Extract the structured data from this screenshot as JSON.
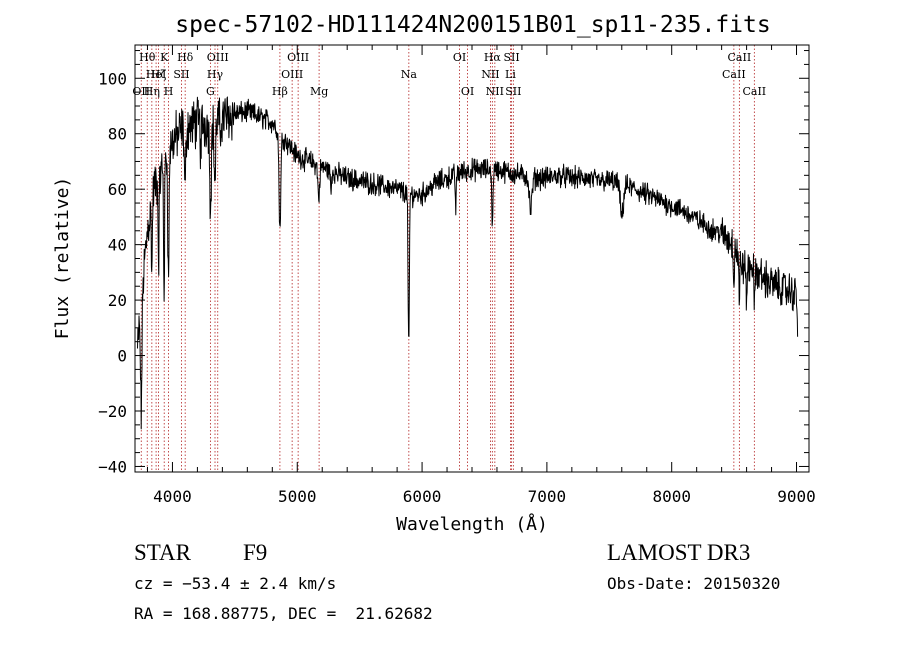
{
  "chart_data": {
    "type": "line",
    "title": "spec-57102-HD111424N200151B01_sp11-235.fits",
    "xlabel": "Wavelength (Å)",
    "ylabel": "Flux (relative)",
    "xlim": [
      3700,
      9100
    ],
    "ylim": [
      -42,
      112
    ],
    "xticks": [
      4000,
      5000,
      6000,
      7000,
      8000,
      9000
    ],
    "xtick_labels": [
      "4000",
      "5000",
      "6000",
      "7000",
      "8000",
      "9000"
    ],
    "yticks": [
      -40,
      -20,
      0,
      20,
      40,
      60,
      80,
      100
    ],
    "ytick_labels": [
      "−40",
      "−20",
      "0",
      "20",
      "40",
      "60",
      "80",
      "100"
    ],
    "line_color": "#000000",
    "marker_color": "#b22222",
    "continuum": {
      "x": [
        3720,
        3760,
        3800,
        3850,
        3900,
        3950,
        4000,
        4050,
        4100,
        4150,
        4200,
        4250,
        4300,
        4350,
        4400,
        4500,
        4600,
        4700,
        4800,
        4900,
        5000,
        5100,
        5200,
        5300,
        5400,
        5500,
        5600,
        5700,
        5800,
        5900,
        6000,
        6100,
        6200,
        6300,
        6400,
        6500,
        6600,
        6700,
        6800,
        6900,
        7000,
        7100,
        7200,
        7300,
        7400,
        7500,
        7600,
        7700,
        7800,
        7900,
        8000,
        8100,
        8200,
        8300,
        8400,
        8500,
        8550,
        8600,
        8650,
        8700,
        8800,
        8900,
        9000,
        9010
      ],
      "y": [
        2,
        25,
        45,
        60,
        65,
        72,
        77,
        80,
        82,
        83,
        84,
        84,
        83,
        85,
        86,
        87,
        88,
        86,
        84,
        78,
        72,
        70,
        68,
        66,
        64,
        63,
        62,
        61,
        60,
        58,
        58,
        62,
        64,
        66,
        67,
        67,
        67,
        66,
        65,
        64,
        64,
        65,
        64,
        64,
        63,
        63,
        62,
        60,
        58,
        56,
        54,
        52,
        49,
        46,
        44,
        40,
        34,
        30,
        33,
        29,
        26,
        24,
        22,
        8
      ]
    },
    "absorption_features": [
      {
        "x": 3750,
        "depth": 40,
        "width": 8
      },
      {
        "x": 3835,
        "depth": 25,
        "width": 6
      },
      {
        "x": 3889,
        "depth": 30,
        "width": 6
      },
      {
        "x": 3933,
        "depth": 45,
        "width": 6
      },
      {
        "x": 3968,
        "depth": 48,
        "width": 7
      },
      {
        "x": 4101,
        "depth": 22,
        "width": 8
      },
      {
        "x": 4227,
        "depth": 12,
        "width": 5
      },
      {
        "x": 4305,
        "depth": 28,
        "width": 9
      },
      {
        "x": 4340,
        "depth": 22,
        "width": 9
      },
      {
        "x": 4383,
        "depth": 10,
        "width": 5
      },
      {
        "x": 4861,
        "depth": 35,
        "width": 10
      },
      {
        "x": 5172,
        "depth": 12,
        "width": 10
      },
      {
        "x": 5270,
        "depth": 8,
        "width": 6
      },
      {
        "x": 5890,
        "depth": 40,
        "width": 5
      },
      {
        "x": 5896,
        "depth": 40,
        "width": 5
      },
      {
        "x": 6270,
        "depth": 12,
        "width": 6
      },
      {
        "x": 6563,
        "depth": 22,
        "width": 6
      },
      {
        "x": 6870,
        "depth": 12,
        "width": 15
      },
      {
        "x": 7600,
        "depth": 12,
        "width": 18
      },
      {
        "x": 8498,
        "depth": 14,
        "width": 5
      },
      {
        "x": 8542,
        "depth": 18,
        "width": 5
      },
      {
        "x": 8600,
        "depth": 10,
        "width": 5
      },
      {
        "x": 8662,
        "depth": 18,
        "width": 5
      }
    ],
    "noise": {
      "seed": 12345,
      "step": 3,
      "amplitude_blue": 14,
      "amplitude_red": 6,
      "amplitude_far_red": 10
    },
    "line_markers": [
      {
        "x": 3750,
        "label": "OII",
        "row": 2
      },
      {
        "x": 3798,
        "label": "Hθ",
        "row": 0
      },
      {
        "x": 3835,
        "label": "Hη",
        "row": 2
      },
      {
        "x": 3869,
        "label": "HeI",
        "row": 1
      },
      {
        "x": 3889,
        "label": "Hζ",
        "row": 1
      },
      {
        "x": 3934,
        "label": "K",
        "row": 0
      },
      {
        "x": 3969,
        "label": "H",
        "row": 2
      },
      {
        "x": 4072,
        "label": "SII",
        "row": 1
      },
      {
        "x": 4102,
        "label": "Hδ",
        "row": 0
      },
      {
        "x": 4304,
        "label": "G",
        "row": 2
      },
      {
        "x": 4341,
        "label": "Hγ",
        "row": 1
      },
      {
        "x": 4363,
        "label": "OIII",
        "row": 0
      },
      {
        "x": 4861,
        "label": "Hβ",
        "row": 2
      },
      {
        "x": 4959,
        "label": "OIII",
        "row": 1
      },
      {
        "x": 5007,
        "label": "OIII",
        "row": 0
      },
      {
        "x": 5175,
        "label": "Mg",
        "row": 2
      },
      {
        "x": 5894,
        "label": "Na",
        "row": 1
      },
      {
        "x": 6300,
        "label": "OI",
        "row": 0
      },
      {
        "x": 6364,
        "label": "OI",
        "row": 2
      },
      {
        "x": 6548,
        "label": "NII",
        "row": 1
      },
      {
        "x": 6563,
        "label": "Hα",
        "row": 0
      },
      {
        "x": 6583,
        "label": "NII",
        "row": 2
      },
      {
        "x": 6708,
        "label": "Li",
        "row": 1
      },
      {
        "x": 6717,
        "label": "SII",
        "row": 0
      },
      {
        "x": 6731,
        "label": "SII",
        "row": 2
      },
      {
        "x": 8498,
        "label": "CaII",
        "row": 1
      },
      {
        "x": 8542,
        "label": "CaII",
        "row": 0
      },
      {
        "x": 8662,
        "label": "CaII",
        "row": 2
      }
    ]
  },
  "info": {
    "object_class": "STAR",
    "subclass": "F9",
    "survey": "LAMOST DR3",
    "redshift": "cz = −53.4 ± 2.4 km/s",
    "obs_date": "Obs-Date: 20150320",
    "coordinates": "RA = 168.88775, DEC =  21.62682"
  }
}
